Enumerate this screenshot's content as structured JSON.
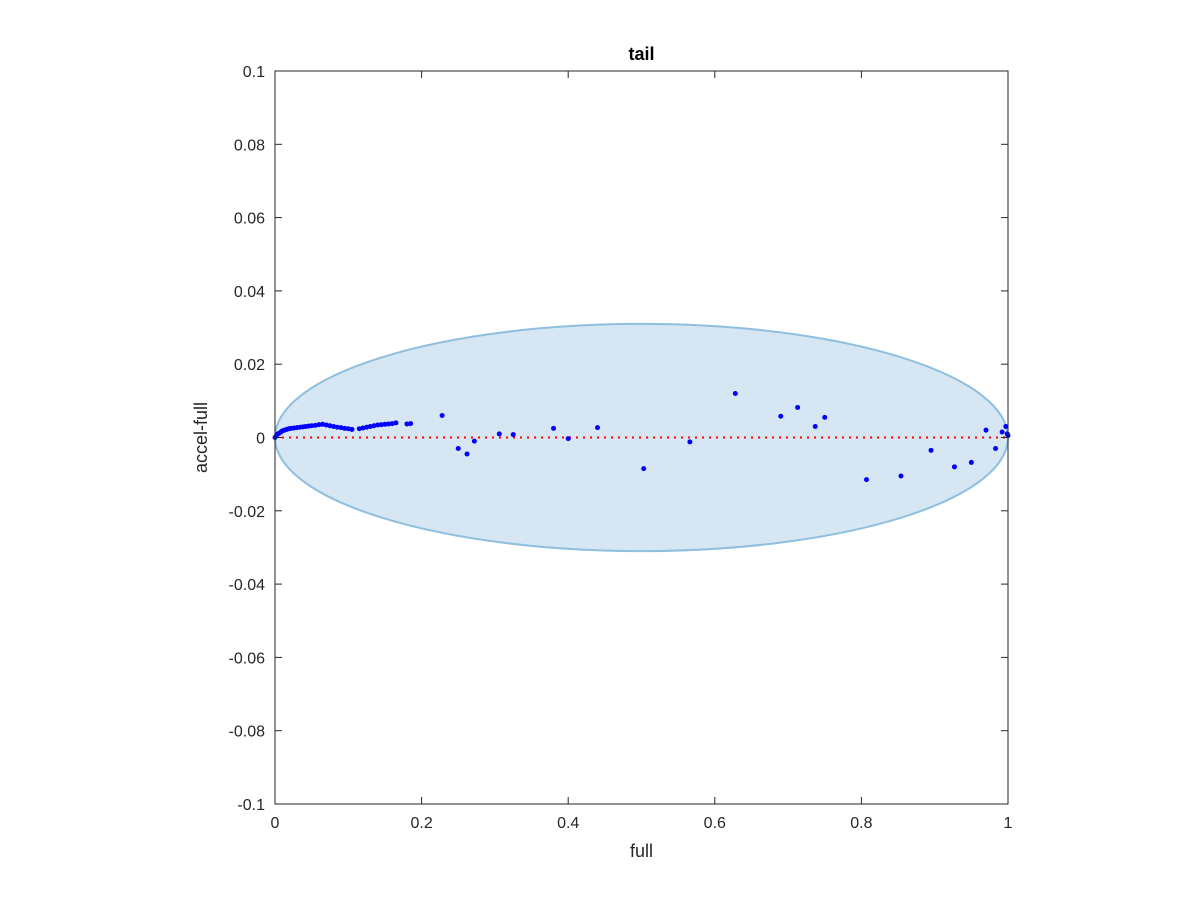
{
  "chart_data": {
    "type": "scatter",
    "title": "tail",
    "xlabel": "full",
    "ylabel": "accel-full",
    "xlim": [
      0,
      1
    ],
    "ylim": [
      -0.1,
      0.1
    ],
    "xticks": [
      0,
      0.2,
      0.4,
      0.6,
      0.8,
      1
    ],
    "xtick_labels": [
      "0",
      "0.2",
      "0.4",
      "0.6",
      "0.8",
      "1"
    ],
    "yticks": [
      -0.1,
      -0.08,
      -0.06,
      -0.04,
      -0.02,
      0,
      0.02,
      0.04,
      0.06,
      0.08,
      0.1
    ],
    "ytick_labels": [
      "-0.1",
      "-0.08",
      "-0.06",
      "-0.04",
      "-0.02",
      "0",
      "0.02",
      "0.04",
      "0.06",
      "0.08",
      "0.1"
    ],
    "grid": false,
    "reference_line": {
      "y": 0,
      "x_range": [
        0,
        1
      ],
      "color": "#ff0000",
      "style": "dotted"
    },
    "ellipse": {
      "cx": 0.5,
      "cy": 0,
      "rx": 0.5,
      "ry": 0.031,
      "fill": "#d6e6f3",
      "stroke": "#8fbfdf"
    },
    "marker_color": "#0000ff",
    "points": [
      [
        0.0,
        0.0
      ],
      [
        0.002,
        0.0005
      ],
      [
        0.004,
        0.001
      ],
      [
        0.006,
        0.0012
      ],
      [
        0.008,
        0.0015
      ],
      [
        0.01,
        0.0018
      ],
      [
        0.013,
        0.002
      ],
      [
        0.016,
        0.0022
      ],
      [
        0.019,
        0.0024
      ],
      [
        0.022,
        0.0025
      ],
      [
        0.026,
        0.0026
      ],
      [
        0.03,
        0.0027
      ],
      [
        0.034,
        0.0028
      ],
      [
        0.038,
        0.0029
      ],
      [
        0.042,
        0.003
      ],
      [
        0.046,
        0.0031
      ],
      [
        0.05,
        0.0032
      ],
      [
        0.055,
        0.0033
      ],
      [
        0.06,
        0.0035
      ],
      [
        0.065,
        0.0036
      ],
      [
        0.07,
        0.0034
      ],
      [
        0.075,
        0.0032
      ],
      [
        0.08,
        0.003
      ],
      [
        0.085,
        0.0028
      ],
      [
        0.09,
        0.0027
      ],
      [
        0.095,
        0.0025
      ],
      [
        0.1,
        0.0024
      ],
      [
        0.105,
        0.0022
      ],
      [
        0.115,
        0.0024
      ],
      [
        0.12,
        0.0026
      ],
      [
        0.125,
        0.0028
      ],
      [
        0.13,
        0.003
      ],
      [
        0.135,
        0.0032
      ],
      [
        0.14,
        0.0034
      ],
      [
        0.145,
        0.0035
      ],
      [
        0.15,
        0.0036
      ],
      [
        0.155,
        0.0037
      ],
      [
        0.16,
        0.0038
      ],
      [
        0.165,
        0.004
      ],
      [
        0.18,
        0.0037
      ],
      [
        0.185,
        0.0038
      ],
      [
        0.228,
        0.006
      ],
      [
        0.25,
        -0.003
      ],
      [
        0.262,
        -0.0045
      ],
      [
        0.272,
        -0.001
      ],
      [
        0.306,
        0.001
      ],
      [
        0.325,
        0.0008
      ],
      [
        0.38,
        0.0025
      ],
      [
        0.4,
        -0.0003
      ],
      [
        0.44,
        0.0027
      ],
      [
        0.503,
        -0.0085
      ],
      [
        0.566,
        -0.0012
      ],
      [
        0.628,
        0.012
      ],
      [
        0.69,
        0.0058
      ],
      [
        0.713,
        0.0082
      ],
      [
        0.737,
        0.003
      ],
      [
        0.75,
        0.0055
      ],
      [
        0.807,
        -0.0115
      ],
      [
        0.854,
        -0.0105
      ],
      [
        0.895,
        -0.0035
      ],
      [
        0.927,
        -0.008
      ],
      [
        0.95,
        -0.0068
      ],
      [
        0.97,
        0.002
      ],
      [
        0.983,
        -0.003
      ],
      [
        0.992,
        0.0015
      ],
      [
        0.997,
        0.003
      ],
      [
        0.999,
        0.001
      ],
      [
        1.0,
        0.0005
      ]
    ]
  }
}
